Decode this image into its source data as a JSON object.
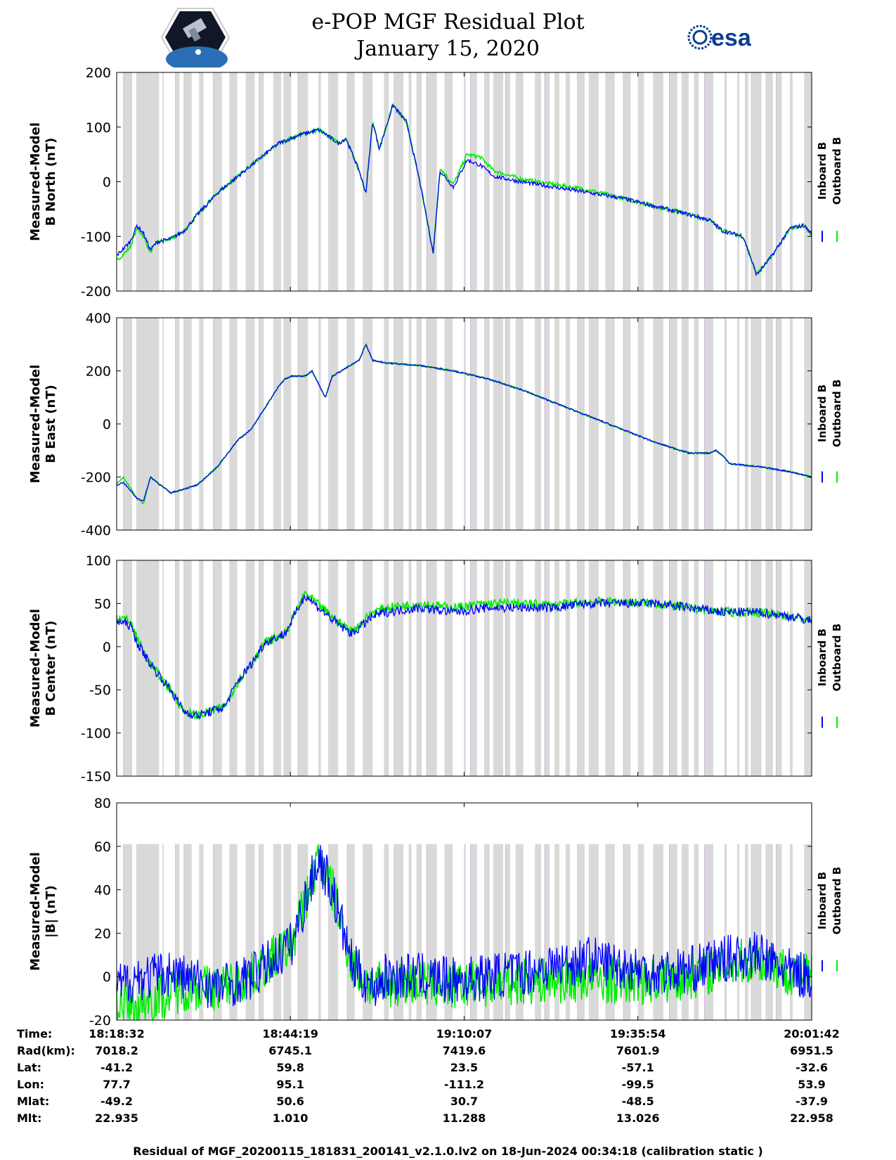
{
  "header": {
    "title_line1": "e-POP MGF Residual Plot",
    "title_line2": "January 15, 2020",
    "logo_left": "cassiope-mission-logo",
    "logo_right_text": "esa"
  },
  "colors": {
    "inboard": "#0000ff",
    "outboard": "#00ee00",
    "shade": "#d9d9d9",
    "shade_line": "#c8a0d8"
  },
  "legend": {
    "inboard_label": "Inboard B",
    "outboard_label": "Outboard B"
  },
  "chart_data": [
    {
      "type": "line",
      "title": "",
      "ylabel_line1": "Measured-Model",
      "ylabel_line2": "B North (nT)",
      "ylim": [
        -200,
        200
      ],
      "yticks": [
        -200,
        -100,
        0,
        100,
        200
      ],
      "x_range_min": [
        0,
        103.17
      ],
      "series": [
        {
          "name": "Inboard B",
          "x": [
            0,
            2,
            3,
            4,
            5,
            6,
            8,
            10,
            12,
            15,
            18,
            21,
            24,
            27,
            30,
            33,
            34,
            35,
            36,
            37,
            38,
            39,
            41,
            43,
            45,
            47,
            48,
            50,
            52,
            54,
            56,
            60,
            65,
            70,
            75,
            80,
            85,
            88,
            90,
            93,
            95,
            97,
            100,
            102,
            103.17
          ],
          "y": [
            -135,
            -110,
            -80,
            -95,
            -125,
            -110,
            -105,
            -90,
            -60,
            -20,
            10,
            40,
            70,
            85,
            95,
            70,
            80,
            50,
            20,
            -20,
            110,
            60,
            140,
            110,
            0,
            -130,
            20,
            -10,
            40,
            30,
            10,
            0,
            -10,
            -20,
            -30,
            -45,
            -60,
            -70,
            -90,
            -100,
            -170,
            -140,
            -85,
            -80,
            -95
          ]
        },
        {
          "name": "Outboard B",
          "x": [
            0,
            2,
            3,
            4,
            5,
            6,
            8,
            10,
            12,
            15,
            18,
            21,
            24,
            27,
            30,
            33,
            34,
            35,
            36,
            37,
            38,
            39,
            41,
            43,
            45,
            47,
            48,
            50,
            52,
            54,
            56,
            60,
            65,
            70,
            75,
            80,
            85,
            88,
            90,
            93,
            95,
            97,
            100,
            102,
            103.17
          ],
          "y": [
            -145,
            -120,
            -85,
            -100,
            -130,
            -110,
            -105,
            -90,
            -60,
            -20,
            10,
            40,
            70,
            85,
            95,
            70,
            80,
            50,
            20,
            -20,
            110,
            60,
            140,
            110,
            0,
            -130,
            25,
            -5,
            50,
            45,
            20,
            5,
            -5,
            -15,
            -30,
            -45,
            -60,
            -70,
            -90,
            -100,
            -170,
            -140,
            -85,
            -80,
            -100
          ]
        }
      ]
    },
    {
      "type": "line",
      "title": "",
      "ylabel_line1": "Measured-Model",
      "ylabel_line2": "B East (nT)",
      "ylim": [
        -400,
        400
      ],
      "yticks": [
        -400,
        -200,
        0,
        200,
        400
      ],
      "x_range_min": [
        0,
        103.17
      ],
      "series": [
        {
          "name": "Inboard B",
          "x": [
            0,
            1,
            2,
            3,
            4,
            5,
            8,
            12,
            15,
            18,
            20,
            22,
            24,
            25,
            26,
            28,
            29,
            30,
            31,
            32,
            34,
            36,
            37,
            38,
            40,
            45,
            50,
            55,
            60,
            65,
            70,
            75,
            80,
            85,
            88,
            89,
            90,
            91,
            95,
            100,
            103.17
          ],
          "y": [
            -230,
            -220,
            -250,
            -280,
            -290,
            -200,
            -260,
            -230,
            -160,
            -60,
            -20,
            60,
            140,
            170,
            180,
            180,
            200,
            150,
            100,
            180,
            210,
            240,
            300,
            240,
            230,
            220,
            200,
            170,
            130,
            80,
            30,
            -20,
            -70,
            -110,
            -110,
            -100,
            -120,
            -150,
            -160,
            -180,
            -200
          ]
        },
        {
          "name": "Outboard B",
          "x": [
            0,
            1,
            2,
            3,
            4,
            5,
            8,
            12,
            15,
            18,
            20,
            22,
            24,
            25,
            26,
            28,
            29,
            30,
            31,
            32,
            34,
            36,
            37,
            38,
            40,
            45,
            50,
            55,
            60,
            65,
            70,
            75,
            80,
            85,
            88,
            89,
            90,
            91,
            95,
            100,
            103.17
          ],
          "y": [
            -225,
            -200,
            -240,
            -280,
            -300,
            -200,
            -260,
            -230,
            -160,
            -60,
            -20,
            60,
            140,
            170,
            180,
            180,
            200,
            150,
            100,
            180,
            210,
            240,
            300,
            240,
            230,
            220,
            200,
            170,
            130,
            80,
            30,
            -20,
            -70,
            -110,
            -110,
            -100,
            -120,
            -150,
            -160,
            -180,
            -200
          ]
        }
      ]
    },
    {
      "type": "line",
      "title": "",
      "ylabel_line1": "Measured-Model",
      "ylabel_line2": "B Center (nT)",
      "ylim": [
        -150,
        100
      ],
      "yticks": [
        -150,
        -100,
        -50,
        0,
        50,
        100
      ],
      "x_range_min": [
        0,
        103.17
      ],
      "series": [
        {
          "name": "Inboard B",
          "x": [
            0,
            2,
            3,
            5,
            8,
            10,
            12,
            14,
            16,
            18,
            20,
            22,
            25,
            28,
            30,
            33,
            35,
            38,
            40,
            45,
            50,
            55,
            60,
            65,
            70,
            75,
            80,
            85,
            90,
            95,
            100,
            103.17
          ],
          "y": [
            30,
            25,
            5,
            -20,
            -50,
            -75,
            -80,
            -75,
            -70,
            -40,
            -20,
            5,
            15,
            60,
            45,
            25,
            15,
            35,
            40,
            45,
            40,
            45,
            45,
            45,
            50,
            50,
            50,
            45,
            40,
            40,
            35,
            30
          ]
        },
        {
          "name": "Outboard B",
          "x": [
            0,
            2,
            3,
            5,
            8,
            10,
            12,
            14,
            16,
            18,
            20,
            22,
            25,
            28,
            30,
            33,
            35,
            38,
            40,
            45,
            50,
            55,
            60,
            65,
            70,
            75,
            80,
            85,
            90,
            95,
            100,
            103.17
          ],
          "y": [
            35,
            30,
            10,
            -20,
            -50,
            -75,
            -80,
            -75,
            -70,
            -40,
            -20,
            5,
            15,
            62,
            48,
            28,
            18,
            40,
            45,
            50,
            45,
            50,
            50,
            48,
            52,
            52,
            50,
            45,
            40,
            40,
            35,
            30
          ]
        }
      ]
    },
    {
      "type": "line",
      "title": "",
      "ylabel_line1": "Measured-Model",
      "ylabel_line2": "|B| (nT)",
      "ylim": [
        -20,
        80
      ],
      "yticks": [
        -20,
        0,
        20,
        40,
        60,
        80
      ],
      "x_range_min": [
        0,
        103.17
      ],
      "series": [
        {
          "name": "Inboard B",
          "x": [
            0,
            3,
            5,
            8,
            10,
            12,
            15,
            20,
            24,
            26,
            28,
            30,
            32,
            35,
            38,
            40,
            45,
            50,
            55,
            60,
            65,
            70,
            75,
            80,
            85,
            90,
            95,
            100,
            103.17
          ],
          "y": [
            -5,
            0,
            0,
            2,
            0,
            -2,
            -5,
            0,
            10,
            15,
            35,
            55,
            40,
            5,
            -5,
            0,
            0,
            -2,
            0,
            2,
            5,
            8,
            5,
            2,
            3,
            8,
            10,
            2,
            0
          ]
        },
        {
          "name": "Outboard B",
          "x": [
            0,
            3,
            5,
            8,
            10,
            12,
            15,
            20,
            24,
            26,
            28,
            30,
            32,
            35,
            38,
            40,
            45,
            50,
            55,
            60,
            65,
            70,
            75,
            80,
            85,
            90,
            95,
            100,
            103.17
          ],
          "y": [
            -12,
            -15,
            -10,
            -8,
            -5,
            -5,
            -5,
            0,
            10,
            15,
            35,
            55,
            40,
            5,
            -5,
            -3,
            -3,
            -5,
            -3,
            -2,
            -2,
            -1,
            -2,
            -2,
            0,
            5,
            8,
            2,
            0
          ]
        }
      ]
    }
  ],
  "x_axis": {
    "ticks_min": [
      0,
      25.78,
      51.58,
      77.37,
      103.17
    ],
    "rows": [
      {
        "label": "Time:",
        "values": [
          "18:18:32",
          "18:44:19",
          "19:10:07",
          "19:35:54",
          "20:01:42"
        ]
      },
      {
        "label": "Rad(km):",
        "values": [
          "7018.2",
          "6745.1",
          "7419.6",
          "7601.9",
          "6951.5"
        ]
      },
      {
        "label": "Lat:",
        "values": [
          "-41.2",
          "59.8",
          "23.5",
          "-57.1",
          "-32.6"
        ]
      },
      {
        "label": "Lon:",
        "values": [
          "77.7",
          "95.1",
          "-111.2",
          "-99.5",
          "53.9"
        ]
      },
      {
        "label": "Mlat:",
        "values": [
          "-49.2",
          "50.6",
          "30.7",
          "-48.5",
          "-37.9"
        ]
      },
      {
        "label": "Mlt:",
        "values": [
          "22.935",
          "1.010",
          "11.288",
          "13.026",
          "22.958"
        ]
      }
    ]
  },
  "footer": "Residual of MGF_20200115_181831_200141_v2.1.0.lv2 on 18-Jun-2024 00:34:18 (calibration static )"
}
